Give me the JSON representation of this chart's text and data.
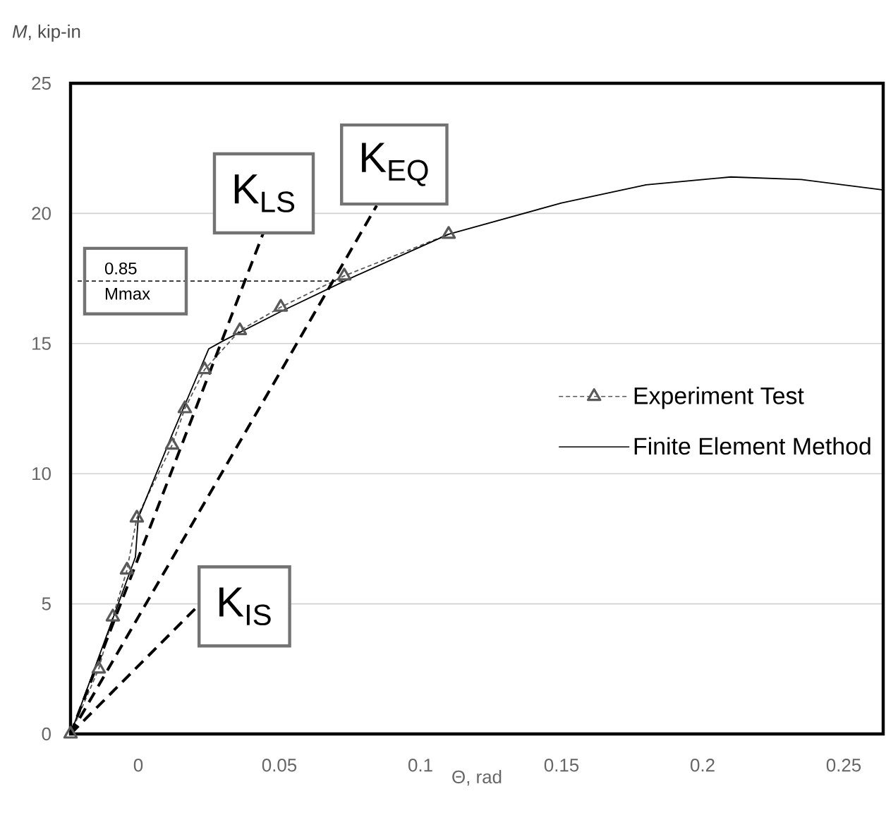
{
  "chart_data": {
    "type": "line",
    "xlabel": "Θ, rad",
    "ylabel": "*M*, kip-in",
    "xlim": [
      -0.024,
      0.264
    ],
    "ylim": [
      0,
      25
    ],
    "xticks": [
      0,
      0.05,
      0.1,
      0.15,
      0.2,
      0.25
    ],
    "yticks": [
      0,
      5,
      10,
      15,
      20,
      25
    ],
    "grid": "y",
    "legend": "right",
    "series": [
      {
        "name": "Experiment Test",
        "color": "#595959",
        "line_style": "dashed",
        "marker": "triangle",
        "x": [
          -0.024,
          -0.014,
          -0.009,
          -0.004,
          -0.0005,
          0.012,
          0.0165,
          0.0235,
          0.036,
          0.0505,
          0.073,
          0.11
        ],
        "values": [
          0,
          2.5,
          4.5,
          6.3,
          8.3,
          11.1,
          12.5,
          14.0,
          15.5,
          16.4,
          17.6,
          19.2
        ]
      },
      {
        "name": "Finite Element Method",
        "color": "#000000",
        "line_style": "solid",
        "marker": "none",
        "x": [
          -0.024,
          -0.001,
          0,
          0.012,
          0.025,
          0.03,
          0.05,
          0.075,
          0.11,
          0.15,
          0.18,
          0.21,
          0.235,
          0.264
        ],
        "values": [
          0,
          6.8,
          8.3,
          11.5,
          14.8,
          15.1,
          16.2,
          17.5,
          19.2,
          20.4,
          21.1,
          21.4,
          21.3,
          20.9
        ]
      },
      {
        "color": "#000000",
        "line_style": "dashed",
        "marker": "none",
        "x": [
          -0.0215,
          0.0725
        ],
        "values": [
          17.4,
          17.4
        ]
      },
      {
        "name": "K$_{IS}$",
        "color": "#000000",
        "line_style": "dashed",
        "marker": "none",
        "x": [
          -0.024,
          0.021
        ],
        "values": [
          0,
          4.9
        ]
      },
      {
        "name": "K$_{LS}$",
        "color": "#000000",
        "line_style": "dashed",
        "marker": "none",
        "x": [
          -0.024,
          0.0445
        ],
        "values": [
          0,
          19.3
        ]
      },
      {
        "name": "K$_{EQ}$",
        "color": "#000000",
        "line_style": "dashed",
        "marker": "none",
        "x": [
          -0.024,
          0.0845
        ],
        "values": [
          0,
          20.3
        ]
      }
    ],
    "annotations": [
      {
        "text": "0.85 Mmax",
        "x": -0.001,
        "y": 17.4
      }
    ]
  }
}
